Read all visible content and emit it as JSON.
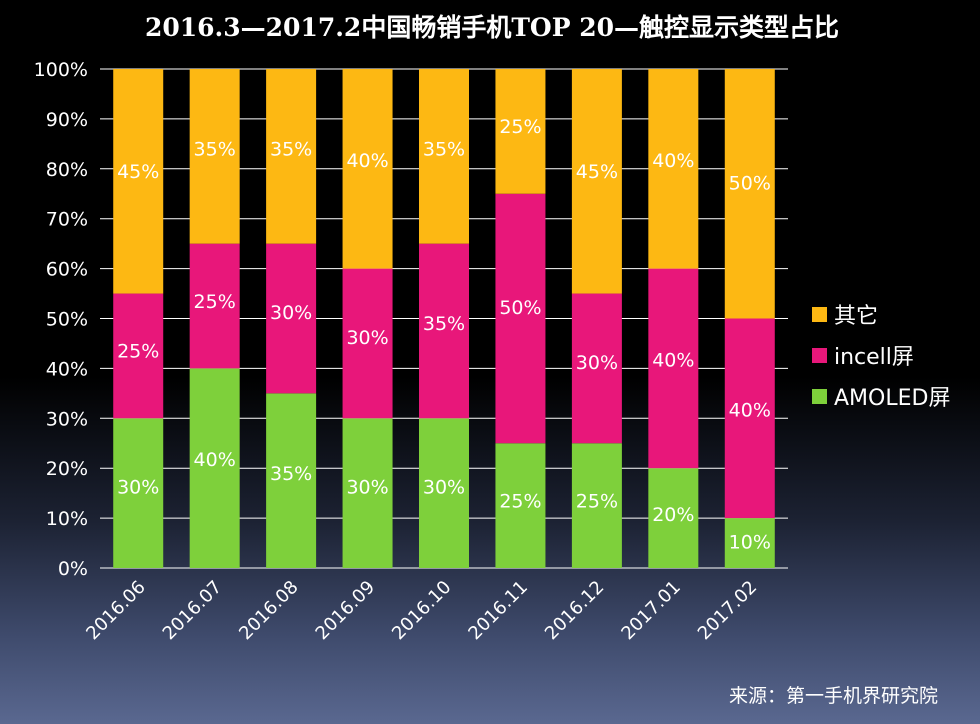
{
  "chart_data": {
    "type": "bar",
    "stacked": true,
    "title": "2016.3—2017.2中国畅销手机TOP 20—触控显示类型占比",
    "categories": [
      "2016.06",
      "2016.07",
      "2016.08",
      "2016.09",
      "2016.10",
      "2016.11",
      "2016.12",
      "2017.01",
      "2017.02"
    ],
    "series": [
      {
        "name": "AMOLED屏",
        "color": "#7ed03b",
        "values": [
          30,
          40,
          35,
          30,
          30,
          25,
          25,
          20,
          10
        ]
      },
      {
        "name": "incell屏",
        "color": "#e8177a",
        "values": [
          25,
          25,
          30,
          30,
          35,
          50,
          30,
          40,
          40
        ]
      },
      {
        "name": "其它",
        "color": "#fdb813",
        "values": [
          45,
          35,
          35,
          40,
          35,
          25,
          45,
          40,
          50
        ]
      }
    ],
    "legend_order": [
      "其它",
      "incell屏",
      "AMOLED屏"
    ],
    "ylim": [
      0,
      100
    ],
    "yticks": [
      "0%",
      "10%",
      "20%",
      "30%",
      "40%",
      "50%",
      "60%",
      "70%",
      "80%",
      "90%",
      "100%"
    ],
    "grid": true,
    "legend_position": "right",
    "source": "来源：第一手机界研究院"
  }
}
